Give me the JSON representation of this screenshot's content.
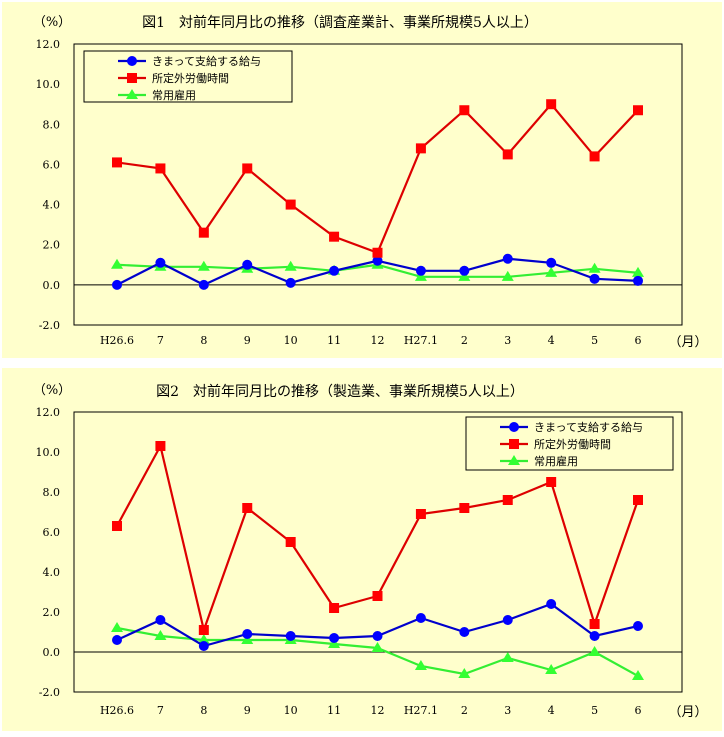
{
  "chart_data": [
    {
      "type": "line",
      "title": "図1　対前年同月比の推移（調査産業計、事業所規模5人以上）",
      "ylabel": "（%）",
      "xlabel": "（月）",
      "categories": [
        "H26.6",
        "7",
        "8",
        "9",
        "10",
        "11",
        "12",
        "H27.1",
        "2",
        "3",
        "4",
        "5",
        "6"
      ],
      "ylim": [
        -2.0,
        12.0
      ],
      "yticks": [
        "12.0",
        "10.0",
        "8.0",
        "6.0",
        "4.0",
        "2.0",
        "0.0",
        "-2.0"
      ],
      "legend_position": "top-left",
      "grid": false,
      "series": [
        {
          "name": "きまって支給する給与",
          "color": "#0000ff",
          "marker": "circle",
          "values": [
            0.0,
            1.1,
            0.0,
            1.0,
            0.1,
            0.7,
            1.2,
            0.7,
            0.7,
            1.3,
            1.1,
            0.3,
            0.2
          ]
        },
        {
          "name": "所定外労働時間",
          "color": "#ff0000",
          "marker": "square",
          "values": [
            6.1,
            5.8,
            2.6,
            5.8,
            4.0,
            2.4,
            1.6,
            6.8,
            8.7,
            6.5,
            9.0,
            6.4,
            8.7
          ]
        },
        {
          "name": "常用雇用",
          "color": "#33ff33",
          "marker": "triangle",
          "values": [
            1.0,
            0.9,
            0.9,
            0.8,
            0.9,
            0.7,
            1.0,
            0.4,
            0.4,
            0.4,
            0.6,
            0.8,
            0.6
          ]
        }
      ]
    },
    {
      "type": "line",
      "title": "図2　対前年同月比の推移（製造業、事業所規模5人以上）",
      "ylabel": "（%）",
      "xlabel": "（月）",
      "categories": [
        "H26.6",
        "7",
        "8",
        "9",
        "10",
        "11",
        "12",
        "H27.1",
        "2",
        "3",
        "4",
        "5",
        "6"
      ],
      "ylim": [
        -2.0,
        12.0
      ],
      "yticks": [
        "12.0",
        "10.0",
        "8.0",
        "6.0",
        "4.0",
        "2.0",
        "0.0",
        "-2.0"
      ],
      "legend_position": "top-right",
      "grid": false,
      "series": [
        {
          "name": "きまって支給する給与",
          "color": "#0000ff",
          "marker": "circle",
          "values": [
            0.6,
            1.6,
            0.3,
            0.9,
            0.8,
            0.7,
            0.8,
            1.7,
            1.0,
            1.6,
            2.4,
            0.8,
            1.3
          ]
        },
        {
          "name": "所定外労働時間",
          "color": "#ff0000",
          "marker": "square",
          "values": [
            6.3,
            10.3,
            1.1,
            7.2,
            5.5,
            2.2,
            2.8,
            6.9,
            7.2,
            7.6,
            8.5,
            1.4,
            7.6
          ]
        },
        {
          "name": "常用雇用",
          "color": "#33ff33",
          "marker": "triangle",
          "values": [
            1.2,
            0.8,
            0.6,
            0.6,
            0.6,
            0.4,
            0.2,
            -0.7,
            -1.1,
            -0.3,
            -0.9,
            0.0,
            -1.2
          ]
        }
      ]
    }
  ]
}
